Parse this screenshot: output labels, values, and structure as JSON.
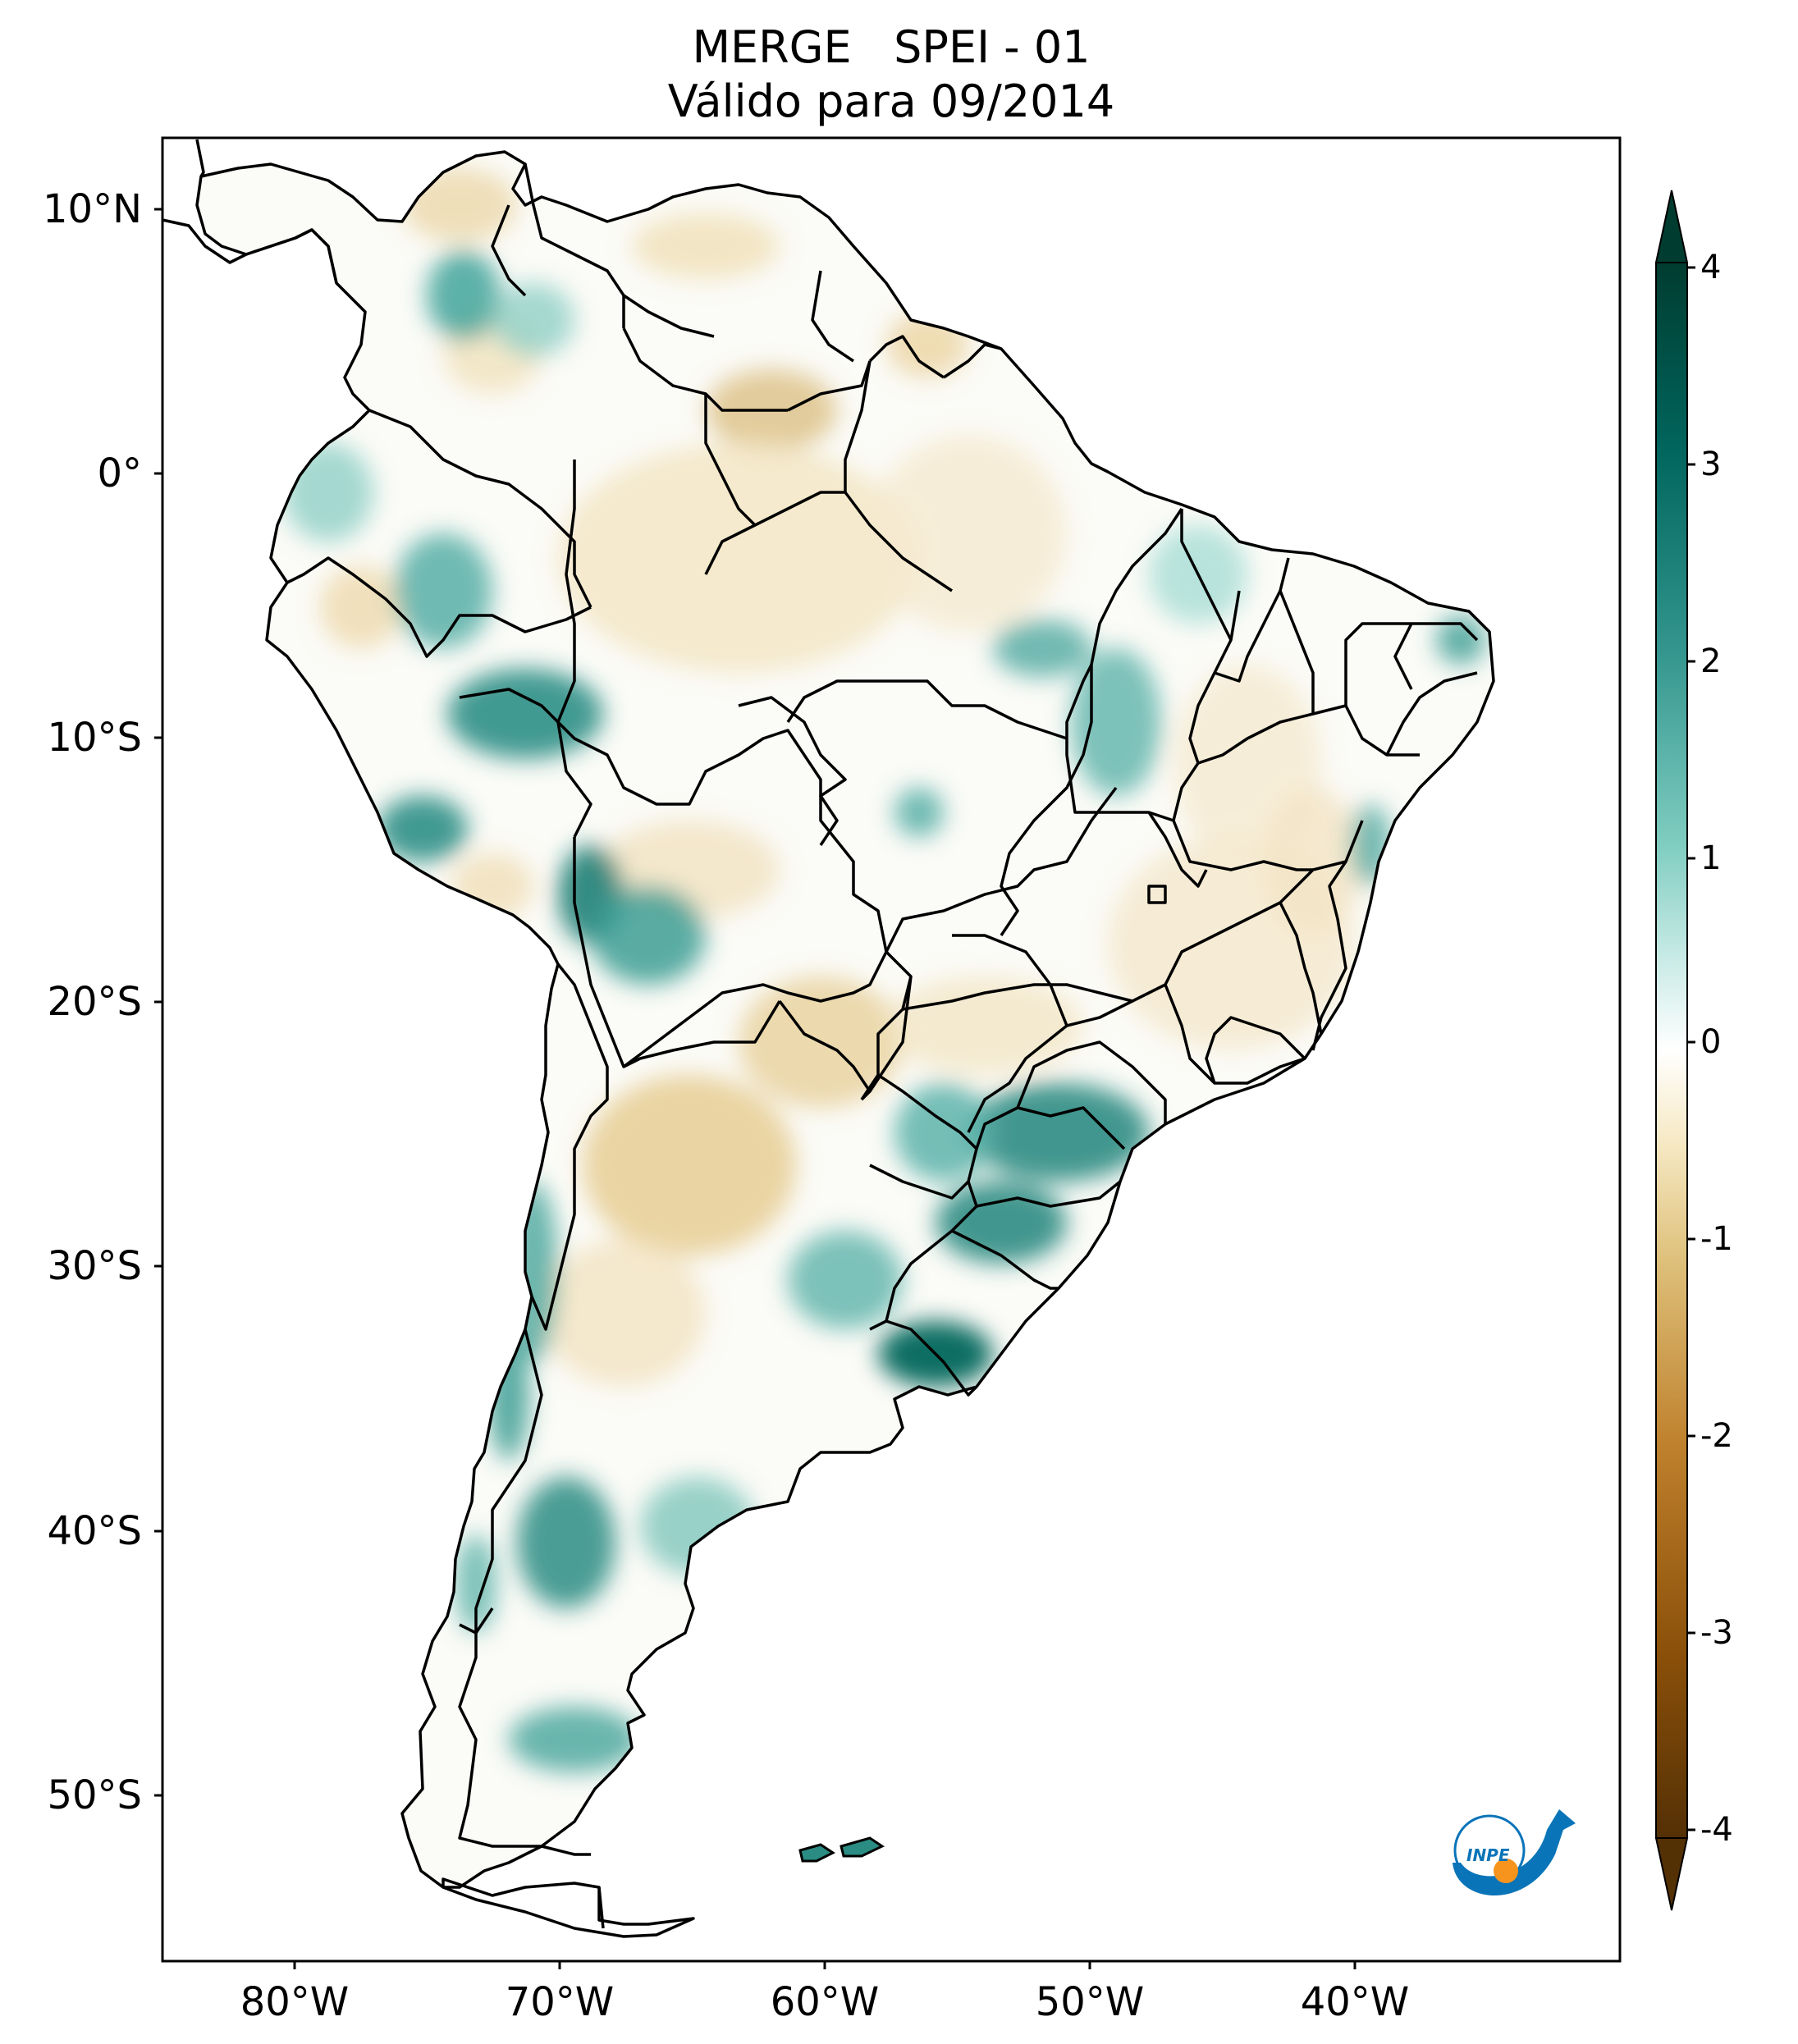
{
  "title": {
    "line1": "MERGE   SPEI - 01",
    "line2": "Válido para 09/2014"
  },
  "map": {
    "extent": {
      "lon": [
        -85,
        -30
      ],
      "lat": [
        -56,
        13
      ]
    },
    "lat_ticks": [
      {
        "value": 10,
        "label": "10°N"
      },
      {
        "value": 0,
        "label": "0°"
      },
      {
        "value": -10,
        "label": "10°S"
      },
      {
        "value": -20,
        "label": "20°S"
      },
      {
        "value": -30,
        "label": "30°S"
      },
      {
        "value": -40,
        "label": "40°S"
      },
      {
        "value": -50,
        "label": "50°S"
      }
    ],
    "lon_ticks": [
      {
        "value": -80,
        "label": "80°W"
      },
      {
        "value": -70,
        "label": "70°W"
      },
      {
        "value": -60,
        "label": "60°W"
      },
      {
        "value": -50,
        "label": "50°W"
      },
      {
        "value": -40,
        "label": "40°W"
      }
    ]
  },
  "colorbar": {
    "ticks": [
      {
        "value": 4,
        "label": "4"
      },
      {
        "value": 3,
        "label": "3"
      },
      {
        "value": 2,
        "label": "2"
      },
      {
        "value": 1,
        "label": "1"
      },
      {
        "value": 0,
        "label": "0"
      },
      {
        "value": -1,
        "label": "-1"
      },
      {
        "value": -2,
        "label": "-2"
      },
      {
        "value": -3,
        "label": "-3"
      },
      {
        "value": -4,
        "label": "-4"
      }
    ],
    "range": [
      -4,
      4
    ],
    "colors": {
      "wet_max": "#003c30",
      "wet_mid": "#35978f",
      "wet_low": "#c7eae5",
      "neutral": "#ffffff",
      "dry_low": "#f6e8c3",
      "dry_mid": "#bf812d",
      "dry_max": "#543005"
    }
  },
  "logo": {
    "text": "INPE",
    "colors": {
      "blue": "#0a74b8",
      "orange": "#f7941d"
    }
  }
}
